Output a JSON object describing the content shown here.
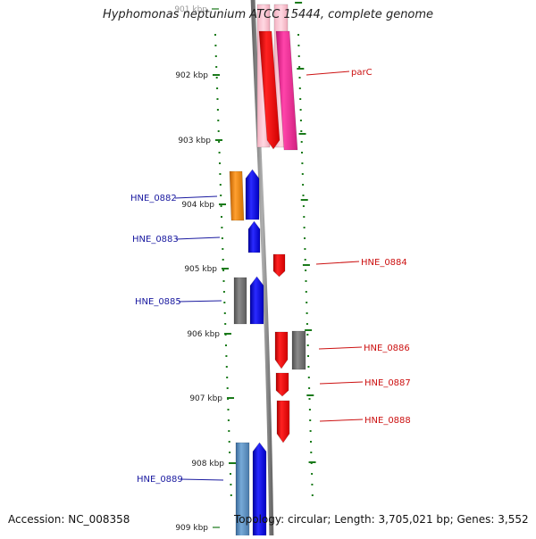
{
  "title": "Hyphomonas neptunium ATCC 15444, complete genome",
  "footer": {
    "accession": "Accession: NC_008358",
    "topology": "Topology: circular; Length: 3,705,021 bp; Genes: 3,552"
  },
  "scale": {
    "unit": "kbp",
    "ticks": [
      "901 kbp",
      "902 kbp",
      "903 kbp",
      "904 kbp",
      "905 kbp",
      "906 kbp",
      "907 kbp",
      "908 kbp",
      "909 kbp"
    ]
  },
  "colors": {
    "backbone": "#8a8a8a",
    "tick": "#1a7a1a",
    "label_left": "#1a1aa0",
    "label_right": "#cc1111",
    "red": "#ee1111",
    "pink": "#ee3399",
    "blue": "#1a1add",
    "orange": "#ee8811",
    "gray": "#707070",
    "steel": "#5588bb"
  },
  "genes": [
    {
      "label": "parC",
      "side": "right",
      "color": "pink",
      "strand": "forward"
    },
    {
      "label": "HNE_0882",
      "side": "left",
      "color": "orange",
      "strand": "reverse"
    },
    {
      "label": "HNE_0883",
      "side": "left",
      "color": "blue",
      "strand": "reverse"
    },
    {
      "label": "HNE_0884",
      "side": "right",
      "color": "red",
      "strand": "forward"
    },
    {
      "label": "HNE_0885",
      "side": "left",
      "color": "gray",
      "strand": "reverse"
    },
    {
      "label": "HNE_0886",
      "side": "right",
      "color": "gray",
      "strand": "forward"
    },
    {
      "label": "HNE_0887",
      "side": "right",
      "color": "red",
      "strand": "forward"
    },
    {
      "label": "HNE_0888",
      "side": "right",
      "color": "red",
      "strand": "forward"
    },
    {
      "label": "HNE_0889",
      "side": "left",
      "color": "steel",
      "strand": "reverse"
    }
  ]
}
